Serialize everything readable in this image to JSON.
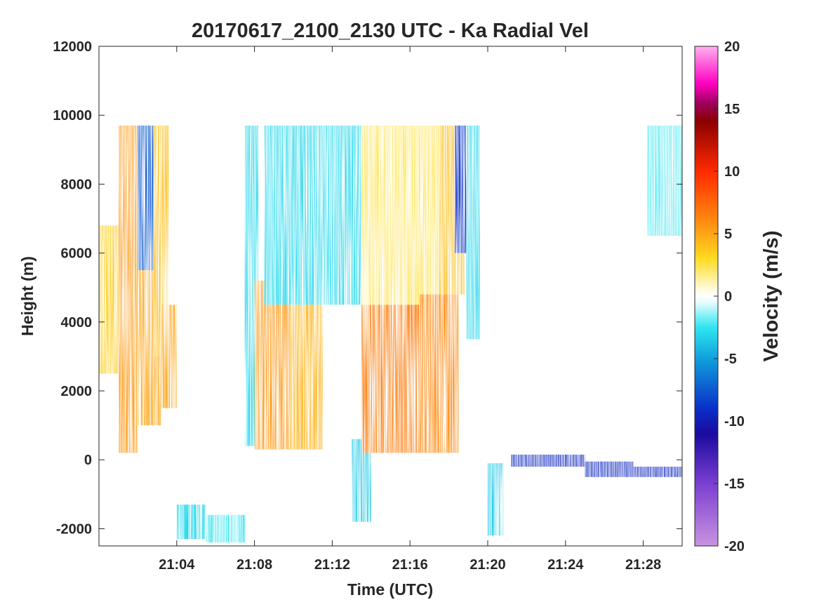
{
  "chart_data": {
    "type": "heatmap",
    "title": "20170617_2100_2130 UTC - Ka Radial Vel",
    "xlabel": "Time (UTC)",
    "ylabel": "Height (m)",
    "colorbar_label": "Velocity (m/s)",
    "xlim_minutes_after_2100": [
      0,
      30
    ],
    "ylim": [
      -2500,
      12000
    ],
    "x_ticks": [
      {
        "label": "21:04",
        "value": 4
      },
      {
        "label": "21:08",
        "value": 8
      },
      {
        "label": "21:12",
        "value": 12
      },
      {
        "label": "21:16",
        "value": 16
      },
      {
        "label": "21:20",
        "value": 20
      },
      {
        "label": "21:24",
        "value": 24
      },
      {
        "label": "21:28",
        "value": 28
      }
    ],
    "y_ticks": [
      {
        "label": "12000",
        "value": 12000
      },
      {
        "label": "10000",
        "value": 10000
      },
      {
        "label": "8000",
        "value": 8000
      },
      {
        "label": "6000",
        "value": 6000
      },
      {
        "label": "4000",
        "value": 4000
      },
      {
        "label": "2000",
        "value": 2000
      },
      {
        "label": "0",
        "value": 0
      },
      {
        "label": "-2000",
        "value": -2000
      }
    ],
    "colorbar_range": [
      -20,
      20
    ],
    "colorbar_ticks": [
      {
        "label": "20",
        "value": 20
      },
      {
        "label": "15",
        "value": 15
      },
      {
        "label": "10",
        "value": 10
      },
      {
        "label": "5",
        "value": 5
      },
      {
        "label": "0",
        "value": 0
      },
      {
        "label": "-5",
        "value": -5
      },
      {
        "label": "-10",
        "value": -10
      },
      {
        "label": "-15",
        "value": -15
      },
      {
        "label": "-20",
        "value": -20
      }
    ],
    "colormap_stops": [
      {
        "v": -20,
        "color": "#c893e0"
      },
      {
        "v": -15,
        "color": "#7b3fd0"
      },
      {
        "v": -11,
        "color": "#1a0aa0"
      },
      {
        "v": -9,
        "color": "#0a2fc8"
      },
      {
        "v": -5,
        "color": "#0fa0dc"
      },
      {
        "v": -2.5,
        "color": "#30e6f0"
      },
      {
        "v": -0.5,
        "color": "#e6fcff"
      },
      {
        "v": 0,
        "color": "#ffffff"
      },
      {
        "v": 0.5,
        "color": "#fffbe0"
      },
      {
        "v": 3,
        "color": "#ffdb20"
      },
      {
        "v": 6,
        "color": "#ff8a10"
      },
      {
        "v": 10,
        "color": "#ff2a00"
      },
      {
        "v": 14,
        "color": "#8a0000"
      },
      {
        "v": 15.5,
        "color": "#a00060"
      },
      {
        "v": 17,
        "color": "#ff00c0"
      },
      {
        "v": 20,
        "color": "#ffb0f0"
      }
    ],
    "series": [
      {
        "time_start": 0.0,
        "time_end": 1.0,
        "height_bottom": 2500,
        "height_top": 6800,
        "velocity": 3.5
      },
      {
        "time_start": 1.0,
        "time_end": 2.0,
        "height_bottom": 200,
        "height_top": 9700,
        "velocity": 5.5
      },
      {
        "time_start": 2.0,
        "time_end": 2.8,
        "height_bottom": 5500,
        "height_top": 9700,
        "velocity": -7.5
      },
      {
        "time_start": 1.8,
        "time_end": 3.2,
        "height_bottom": 1000,
        "height_top": 5500,
        "velocity": 5.0
      },
      {
        "time_start": 2.8,
        "time_end": 3.6,
        "height_bottom": 3000,
        "height_top": 9700,
        "velocity": 4.0
      },
      {
        "time_start": 3.2,
        "time_end": 4.0,
        "height_bottom": 1500,
        "height_top": 4500,
        "velocity": 5.0
      },
      {
        "time_start": 4.0,
        "time_end": 5.5,
        "height_bottom": -2300,
        "height_top": -1300,
        "velocity": -3.0
      },
      {
        "time_start": 5.5,
        "time_end": 7.5,
        "height_bottom": -2400,
        "height_top": -1600,
        "velocity": -2.5
      },
      {
        "time_start": 7.5,
        "time_end": 8.2,
        "height_bottom": 400,
        "height_top": 9700,
        "velocity": -3.0
      },
      {
        "time_start": 8.0,
        "time_end": 9.8,
        "height_bottom": 300,
        "height_top": 5200,
        "velocity": 5.5
      },
      {
        "time_start": 9.8,
        "time_end": 11.5,
        "height_bottom": 300,
        "height_top": 4500,
        "velocity": 4.5
      },
      {
        "time_start": 8.5,
        "time_end": 13.5,
        "height_bottom": 4500,
        "height_top": 9700,
        "velocity": -3.0
      },
      {
        "time_start": 13.0,
        "time_end": 14.0,
        "height_bottom": -1800,
        "height_top": 600,
        "velocity": -3.5
      },
      {
        "time_start": 13.5,
        "time_end": 16.5,
        "height_bottom": 200,
        "height_top": 4500,
        "velocity": 6.5
      },
      {
        "time_start": 13.5,
        "time_end": 17.5,
        "height_bottom": 4500,
        "height_top": 9700,
        "velocity": 2.0
      },
      {
        "time_start": 16.5,
        "time_end": 18.5,
        "height_bottom": 200,
        "height_top": 4800,
        "velocity": 6.0
      },
      {
        "time_start": 17.5,
        "time_end": 18.8,
        "height_bottom": 4800,
        "height_top": 9700,
        "velocity": 4.0
      },
      {
        "time_start": 18.3,
        "time_end": 18.9,
        "height_bottom": 6000,
        "height_top": 9700,
        "velocity": -9.0
      },
      {
        "time_start": 18.9,
        "time_end": 19.6,
        "height_bottom": 3500,
        "height_top": 9700,
        "velocity": -3.0
      },
      {
        "time_start": 20.0,
        "time_end": 20.8,
        "height_bottom": -2200,
        "height_top": -100,
        "velocity": -3.5
      },
      {
        "time_start": 21.2,
        "time_end": 25.0,
        "height_bottom": -200,
        "height_top": 150,
        "velocity": -9.5
      },
      {
        "time_start": 25.0,
        "time_end": 27.5,
        "height_bottom": -500,
        "height_top": -50,
        "velocity": -9.5
      },
      {
        "time_start": 27.5,
        "time_end": 30.0,
        "height_bottom": -500,
        "height_top": -200,
        "velocity": -9.5
      },
      {
        "time_start": 28.2,
        "time_end": 30.0,
        "height_bottom": 6500,
        "height_top": 9700,
        "velocity": -2.0
      }
    ]
  }
}
